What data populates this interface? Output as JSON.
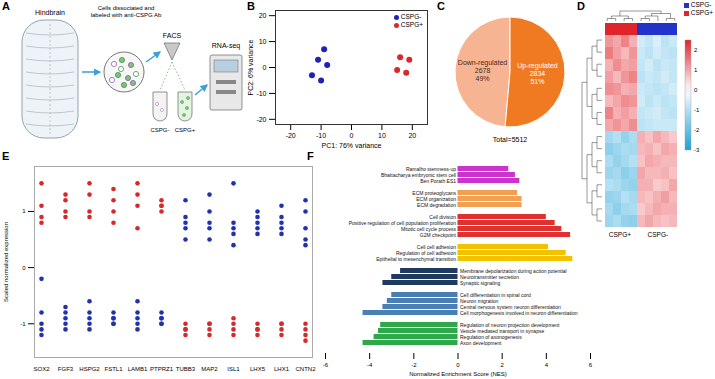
{
  "chart_data": [
    {
      "label": "A",
      "type": "diagram",
      "region": "Hindbrain",
      "step": "Cells dissociated and labeled with anti-CSPG Ab",
      "sorting": "FACS",
      "fractions": [
        "CSPG-",
        "CSPG+"
      ],
      "assay": "RNA-seq"
    },
    {
      "label": "B",
      "type": "scatter",
      "x_label": "PC1: 76% variance",
      "y_label": "PC2: 6% variance",
      "xlim": [
        -25,
        25
      ],
      "xticks": [
        -20,
        -10,
        0,
        10,
        20
      ],
      "ylim": [
        -22,
        22
      ],
      "yticks": [
        -20,
        -10,
        0,
        10,
        20
      ],
      "legend": "top-right",
      "series": [
        {
          "name": "CSPG-",
          "color": "#1f22b4",
          "x": [
            -9,
            -11,
            -8,
            -13,
            -10
          ],
          "y": [
            7,
            3,
            1,
            -3,
            -5
          ]
        },
        {
          "name": "CSPG+",
          "color": "#d42a2a",
          "x": [
            16,
            19,
            15,
            18
          ],
          "y": [
            4,
            3,
            -1,
            -2
          ]
        }
      ]
    },
    {
      "label": "C",
      "type": "pie",
      "categories": [
        "Down-regulated",
        "Up-regulated"
      ],
      "values": [
        2678,
        2834
      ],
      "percent_labels": [
        "49%",
        "51%"
      ],
      "colors": [
        "#f6b493",
        "#f07a22"
      ],
      "data_labels": true,
      "total_label": "Total=5512"
    },
    {
      "label": "D",
      "type": "heatmap",
      "legend": "top-right",
      "series": [
        {
          "name": "CSPG-",
          "color": "#2233cc"
        },
        {
          "name": "CSPG+",
          "color": "#e0242b"
        }
      ],
      "columns": [
        "CSPG+",
        "CSPG+",
        "CSPG+",
        "CSPG+",
        "CSPG-",
        "CSPG-",
        "CSPG-",
        "CSPG-",
        "CSPG-"
      ],
      "cells": [
        [
          1.2,
          1.0,
          1.4,
          0.9,
          -0.6,
          -0.8,
          -0.5,
          -0.9,
          -0.7
        ],
        [
          1.5,
          1.1,
          0.8,
          1.2,
          -0.7,
          -0.9,
          -0.6,
          -0.8,
          -0.9
        ],
        [
          0.9,
          1.3,
          1.0,
          1.1,
          -0.8,
          -0.6,
          -0.9,
          -0.7,
          -0.8
        ],
        [
          1.1,
          0.8,
          1.2,
          1.4,
          -0.9,
          -0.7,
          -0.8,
          -0.6,
          -0.8
        ],
        [
          1.3,
          1.2,
          0.9,
          1.0,
          -0.7,
          -0.8,
          -0.9,
          -0.8,
          -0.6
        ],
        [
          0.8,
          1.0,
          1.3,
          1.2,
          -0.6,
          -0.9,
          -0.7,
          -0.9,
          -0.8
        ],
        [
          1.4,
          0.9,
          1.1,
          0.9,
          -0.8,
          -0.7,
          -0.6,
          -0.8,
          -0.9
        ],
        [
          1.0,
          1.2,
          1.0,
          1.3,
          -0.9,
          -0.8,
          -0.7,
          -0.7,
          -0.7
        ],
        [
          -1.2,
          -1.0,
          -1.4,
          -1.1,
          0.9,
          0.7,
          1.0,
          0.8,
          0.6
        ],
        [
          -1.5,
          -1.3,
          -1.1,
          -1.2,
          0.8,
          0.9,
          0.7,
          1.0,
          0.9
        ],
        [
          -1.1,
          -1.4,
          -1.2,
          -1.0,
          0.7,
          1.0,
          0.9,
          0.8,
          0.8
        ],
        [
          -1.3,
          -1.2,
          -1.5,
          -1.3,
          1.0,
          0.8,
          0.8,
          0.9,
          0.7
        ],
        [
          -1.0,
          -1.1,
          -1.3,
          -1.4,
          0.9,
          0.9,
          0.6,
          0.7,
          1.0
        ],
        [
          -1.4,
          -1.3,
          -1.0,
          -1.2,
          0.8,
          0.7,
          0.9,
          1.1,
          0.8
        ],
        [
          -1.2,
          -1.5,
          -1.2,
          -1.1,
          0.6,
          0.8,
          1.0,
          0.9,
          0.9
        ],
        [
          -1.3,
          -1.1,
          -1.4,
          -1.5,
          0.8,
          1.0,
          0.8,
          0.7,
          0.8
        ]
      ],
      "colorbar_range": [
        -3,
        2.5
      ],
      "colorbar_ticks": [
        -3,
        -2,
        -1,
        0,
        1,
        2
      ]
    },
    {
      "label": "E",
      "type": "dot",
      "categories": [
        "SOX2",
        "FGF3",
        "HSPG2",
        "FSTL1",
        "LAMB1",
        "PTPRZ1",
        "TUBB3",
        "MAP2",
        "ISL1",
        "LHX5",
        "LHX1",
        "CNTN2"
      ],
      "y_label": "Scaled normalized expression",
      "ylim": [
        -1.6,
        1.8
      ],
      "yticks": [
        -1,
        0,
        1
      ],
      "series": [
        {
          "color": "#d42a2a",
          "values": [
            [
              1.5,
              1.1,
              0.9,
              0.8
            ],
            [
              1.3,
              1.2,
              1.0,
              0.9
            ],
            [
              1.5,
              1.3,
              1.0,
              0.9
            ],
            [
              1.4,
              1.2,
              1.0,
              0.8
            ],
            [
              1.5,
              1.3,
              1.1,
              0.7
            ],
            [
              1.2,
              1.1,
              1.1,
              1.0
            ],
            [
              -1.0,
              -1.1,
              -1.1,
              -1.2
            ],
            [
              -1.0,
              -1.0,
              -1.1,
              -1.2
            ],
            [
              -0.9,
              -1.0,
              -1.1,
              -1.2
            ],
            [
              -1.0,
              -1.1,
              -1.1,
              -1.2
            ],
            [
              -1.0,
              -1.0,
              -1.1,
              -1.2
            ],
            [
              -1.0,
              -1.1,
              -1.2,
              -1.3
            ]
          ]
        },
        {
          "color": "#2233aa",
          "values": [
            [
              -0.2,
              -0.8,
              -1.0,
              -1.1,
              -1.2
            ],
            [
              -0.7,
              -0.8,
              -0.9,
              -1.0,
              -1.1
            ],
            [
              -0.6,
              -0.8,
              -0.9,
              -1.0,
              -1.1
            ],
            [
              -0.8,
              -0.9,
              -0.9,
              -1.0,
              -1.0
            ],
            [
              -0.6,
              -0.8,
              -0.9,
              -1.0,
              -1.1
            ],
            [
              -0.8,
              -0.9,
              -0.9,
              -1.0,
              -1.0
            ],
            [
              1.2,
              0.9,
              0.8,
              0.7,
              0.5
            ],
            [
              1.3,
              1.0,
              0.8,
              0.7,
              0.5
            ],
            [
              1.5,
              0.8,
              0.7,
              0.6,
              0.4
            ],
            [
              1.0,
              0.9,
              0.8,
              0.7,
              0.6
            ],
            [
              1.1,
              0.9,
              0.8,
              0.7,
              0.6
            ],
            [
              1.2,
              1.0,
              0.7,
              0.5,
              0.4
            ]
          ]
        }
      ]
    },
    {
      "label": "F",
      "type": "bar",
      "orientation": "horizontal",
      "x_label": "Normalized Enrichment Score (NES)",
      "xlim": [
        -6,
        6
      ],
      "xticks": [
        -6,
        -4,
        -2,
        0,
        2,
        4,
        6
      ],
      "categories": [
        "Ramalho stemness-up",
        "Bhattacharya embryonic stem cell",
        "Ben Porath ES1",
        null,
        "ECM proteoglycans",
        "ECM organization",
        "ECM degradation",
        null,
        "Cell division",
        "Positive regulation of cell population proliferation",
        "Mitotic cell cycle process",
        "G2M checkpoint",
        null,
        "Cell cell adhesion",
        "Regulation of cell adhesion",
        "Epithelial to mesenchymal transition",
        null,
        "Membrane depolarization during action potential",
        "Neurotransmitter secretion",
        "Synaptic signaling",
        null,
        "Cell differentiation in spinal cord",
        "Neuron migration",
        "Central nervous system neuron differentiation",
        "Cell morphogenesis involved in neuron differentiation",
        null,
        "Regulation of neuron projection development",
        "Vesicle mediated transport in synapse",
        "Regulation of axonogenesis",
        "Axon development"
      ],
      "values": [
        2.3,
        2.6,
        2.8,
        null,
        2.7,
        2.9,
        2.9,
        null,
        4.0,
        4.4,
        4.7,
        5.1,
        null,
        4.1,
        4.9,
        5.2,
        null,
        -2.6,
        -3.0,
        -3.4,
        null,
        -3.0,
        -3.2,
        -3.4,
        -4.3,
        null,
        -3.5,
        -3.6,
        -3.8,
        -4.3
      ],
      "colors": [
        "#cc33cc",
        "#cc33cc",
        "#cc33cc",
        null,
        "#f0a050",
        "#f0a050",
        "#f0a050",
        null,
        "#e03030",
        "#e03030",
        "#e03030",
        "#e03030",
        null,
        "#f2c200",
        "#f2c200",
        "#f2c200",
        null,
        "#1f3a5f",
        "#1f3a5f",
        "#1f3a5f",
        null,
        "#4a7fb5",
        "#4a7fb5",
        "#4a7fb5",
        "#4a7fb5",
        null,
        "#2ea84a",
        "#2ea84a",
        "#2ea84a",
        "#2ea84a"
      ]
    }
  ]
}
